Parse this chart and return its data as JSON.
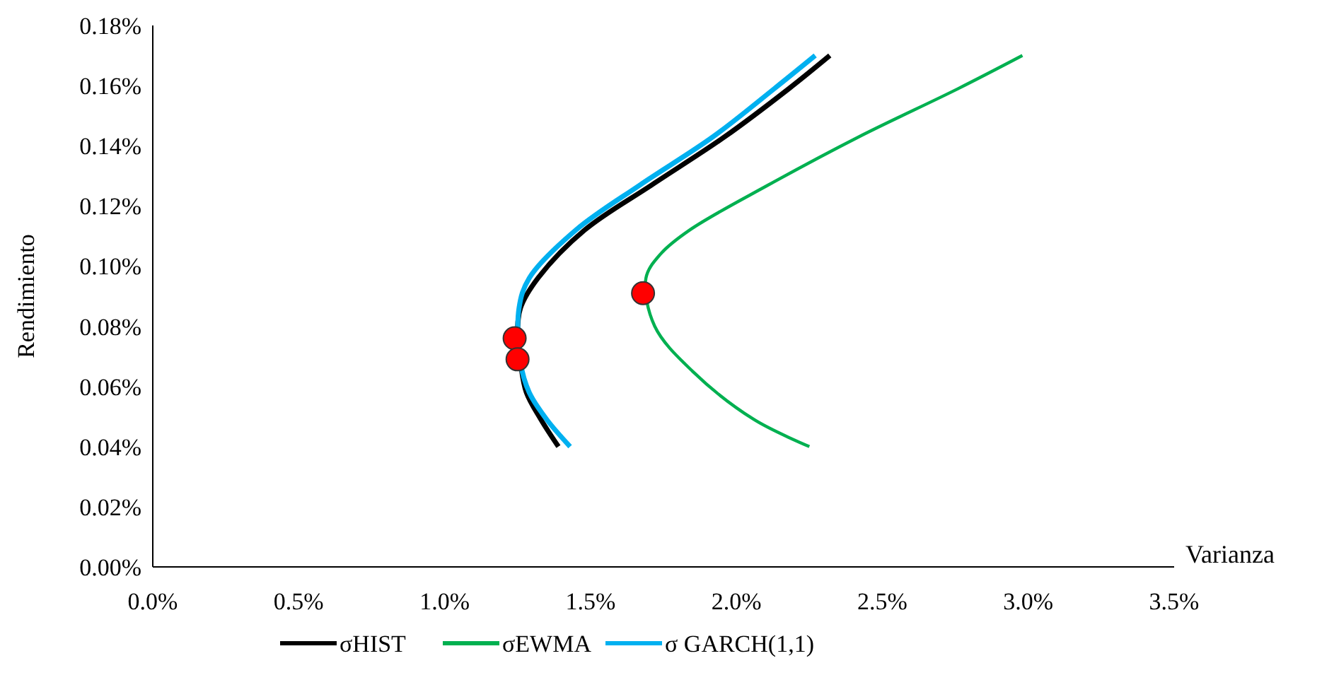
{
  "chart_data": {
    "type": "line",
    "xlabel": "Varianza",
    "ylabel": "Rendimiento",
    "xlim": [
      0,
      3.5
    ],
    "ylim": [
      0,
      0.18
    ],
    "xticks": [
      {
        "value": 0,
        "label": "0.0%"
      },
      {
        "value": 0.5,
        "label": "0.5%"
      },
      {
        "value": 1,
        "label": "1.0%"
      },
      {
        "value": 1.5,
        "label": "1.5%"
      },
      {
        "value": 2,
        "label": "2.0%"
      },
      {
        "value": 2.5,
        "label": "2.5%"
      },
      {
        "value": 3,
        "label": "3.0%"
      },
      {
        "value": 3.5,
        "label": "3.5%"
      }
    ],
    "yticks": [
      {
        "value": 0,
        "label": "0.00%"
      },
      {
        "value": 0.02,
        "label": "0.02%"
      },
      {
        "value": 0.04,
        "label": "0.04%"
      },
      {
        "value": 0.06,
        "label": "0.06%"
      },
      {
        "value": 0.08,
        "label": "0.08%"
      },
      {
        "value": 0.1,
        "label": "0.10%"
      },
      {
        "value": 0.12,
        "label": "0.12%"
      },
      {
        "value": 0.14,
        "label": "0.14%"
      },
      {
        "value": 0.16,
        "label": "0.16%"
      },
      {
        "value": 0.18,
        "label": "0.18%"
      }
    ],
    "grid": false,
    "legend": "bottom",
    "marker": "none",
    "line_style": "solid",
    "series": [
      {
        "name": "σHIST",
        "color": "#000000",
        "x": [
          2.32,
          2.18,
          1.96,
          1.71,
          1.48,
          1.32,
          1.26,
          1.25,
          1.26,
          1.28,
          1.33,
          1.39
        ],
        "values": [
          0.17,
          0.159,
          0.143,
          0.127,
          0.112,
          0.096,
          0.086,
          0.077,
          0.068,
          0.058,
          0.049,
          0.04
        ]
      },
      {
        "name": "σEWMA",
        "color": "#00b050",
        "x": [
          2.98,
          2.76,
          2.42,
          2.11,
          1.84,
          1.74,
          1.69,
          1.72,
          1.85,
          2.06,
          2.25
        ],
        "values": [
          0.17,
          0.159,
          0.143,
          0.127,
          0.112,
          0.104,
          0.096,
          0.08,
          0.065,
          0.049,
          0.04
        ]
      },
      {
        "name": "σ GARCH(1,1)",
        "color": "#00b0f0",
        "x": [
          2.27,
          2.13,
          1.92,
          1.67,
          1.45,
          1.29,
          1.255,
          1.26,
          1.29,
          1.35,
          1.43
        ],
        "values": [
          0.17,
          0.159,
          0.143,
          0.127,
          0.112,
          0.096,
          0.086,
          0.068,
          0.058,
          0.049,
          0.04
        ]
      },
      {
        "type": "scatter",
        "marker": "circle",
        "color": "#ff0000",
        "x": [
          1.24,
          1.25,
          1.68
        ],
        "values": [
          0.076,
          0.069,
          0.091
        ]
      }
    ]
  }
}
